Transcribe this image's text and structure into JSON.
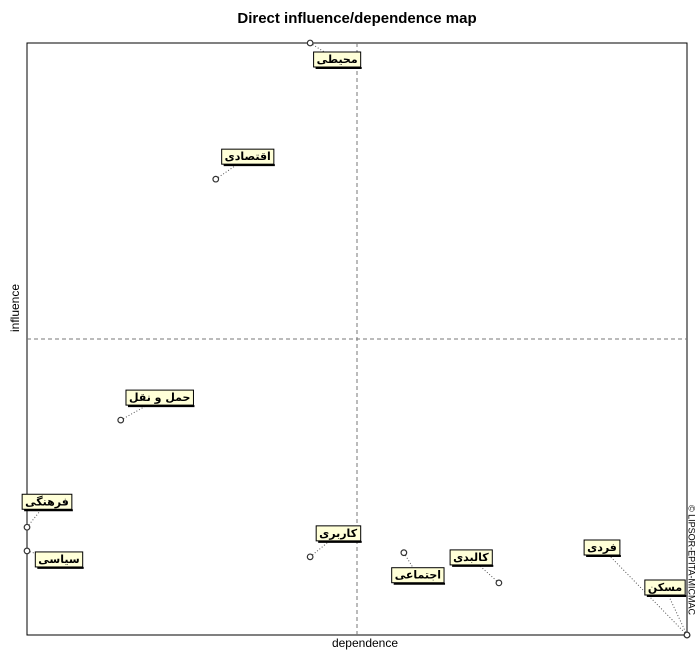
{
  "chart_data": {
    "type": "scatter",
    "title": "Direct influence/dependence map",
    "x_label": "dependence",
    "y_label": "influence",
    "source": "© LIPSOR-EPITA-MICMAC",
    "xlim": [
      0,
      100
    ],
    "ylim": [
      0,
      100
    ],
    "points": [
      {
        "label": "محیطی",
        "x": 42.9,
        "y": 100
      },
      {
        "label": "اقتصادی",
        "x": 28.6,
        "y": 77.0
      },
      {
        "label": "حمل و نقل",
        "x": 14.2,
        "y": 36.3
      },
      {
        "label": "فرهنگی",
        "x": 0,
        "y": 18.2
      },
      {
        "label": "سیاسی",
        "x": 0,
        "y": 14.2
      },
      {
        "label": "کاربری",
        "x": 42.9,
        "y": 13.2
      },
      {
        "label": "اجتماعی",
        "x": 57.1,
        "y": 13.9
      },
      {
        "label": "کالبدی",
        "x": 71.5,
        "y": 8.8
      },
      {
        "label": "فردی",
        "x": 100,
        "y": 0
      },
      {
        "label": "مسکن",
        "x": 100,
        "y": 0
      }
    ]
  }
}
